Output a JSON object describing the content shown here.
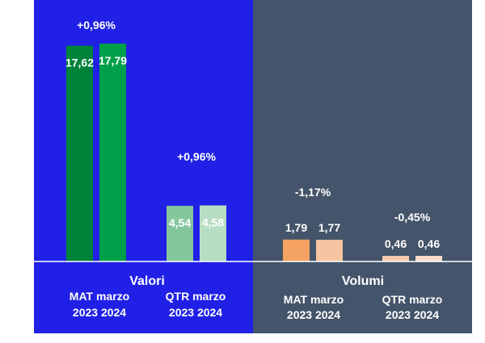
{
  "sections": {
    "valori": {
      "title": "Valori",
      "groups": [
        {
          "period": "MAT marzo",
          "years": "2023 2024"
        },
        {
          "period": "QTR marzo",
          "years": "2023 2024"
        }
      ]
    },
    "volumi": {
      "title": "Volumi",
      "groups": [
        {
          "period": "MAT marzo",
          "years": "2023 2024"
        },
        {
          "period": "QTR marzo",
          "years": "2023 2024"
        }
      ]
    }
  },
  "colors": {
    "valori_bg": "#2020e6",
    "volumi_bg": "#44546a",
    "baseline": "#ffffff"
  },
  "chart_data": {
    "type": "bar",
    "title": "",
    "xlabel": "",
    "ylabel": "",
    "ylim": [
      0,
      18
    ],
    "groups": [
      {
        "section": "Valori",
        "period": "MAT marzo",
        "categories": [
          "2023",
          "2024"
        ],
        "values": [
          17.62,
          17.79
        ],
        "value_labels": [
          "17,62",
          "17,79"
        ],
        "change": "+0,96%",
        "colors": [
          "#00823a",
          "#00a04b"
        ]
      },
      {
        "section": "Valori",
        "period": "QTR marzo",
        "categories": [
          "2023",
          "2024"
        ],
        "values": [
          4.54,
          4.58
        ],
        "value_labels": [
          "4,54",
          "4,58"
        ],
        "change": "+0,96%",
        "colors": [
          "#85c79c",
          "#b7ddc2"
        ]
      },
      {
        "section": "Volumi",
        "period": "MAT marzo",
        "categories": [
          "2023",
          "2024"
        ],
        "values": [
          1.79,
          1.77
        ],
        "value_labels": [
          "1,79",
          "1,77"
        ],
        "change": "-1,17%",
        "colors": [
          "#f4a261",
          "#f6c4a0"
        ]
      },
      {
        "section": "Volumi",
        "period": "QTR marzo",
        "categories": [
          "2023",
          "2024"
        ],
        "values": [
          0.46,
          0.46
        ],
        "value_labels": [
          "0,46",
          "0,46"
        ],
        "change": "-0,45%",
        "colors": [
          "#f6c9ad",
          "#f8dccb"
        ]
      }
    ]
  }
}
